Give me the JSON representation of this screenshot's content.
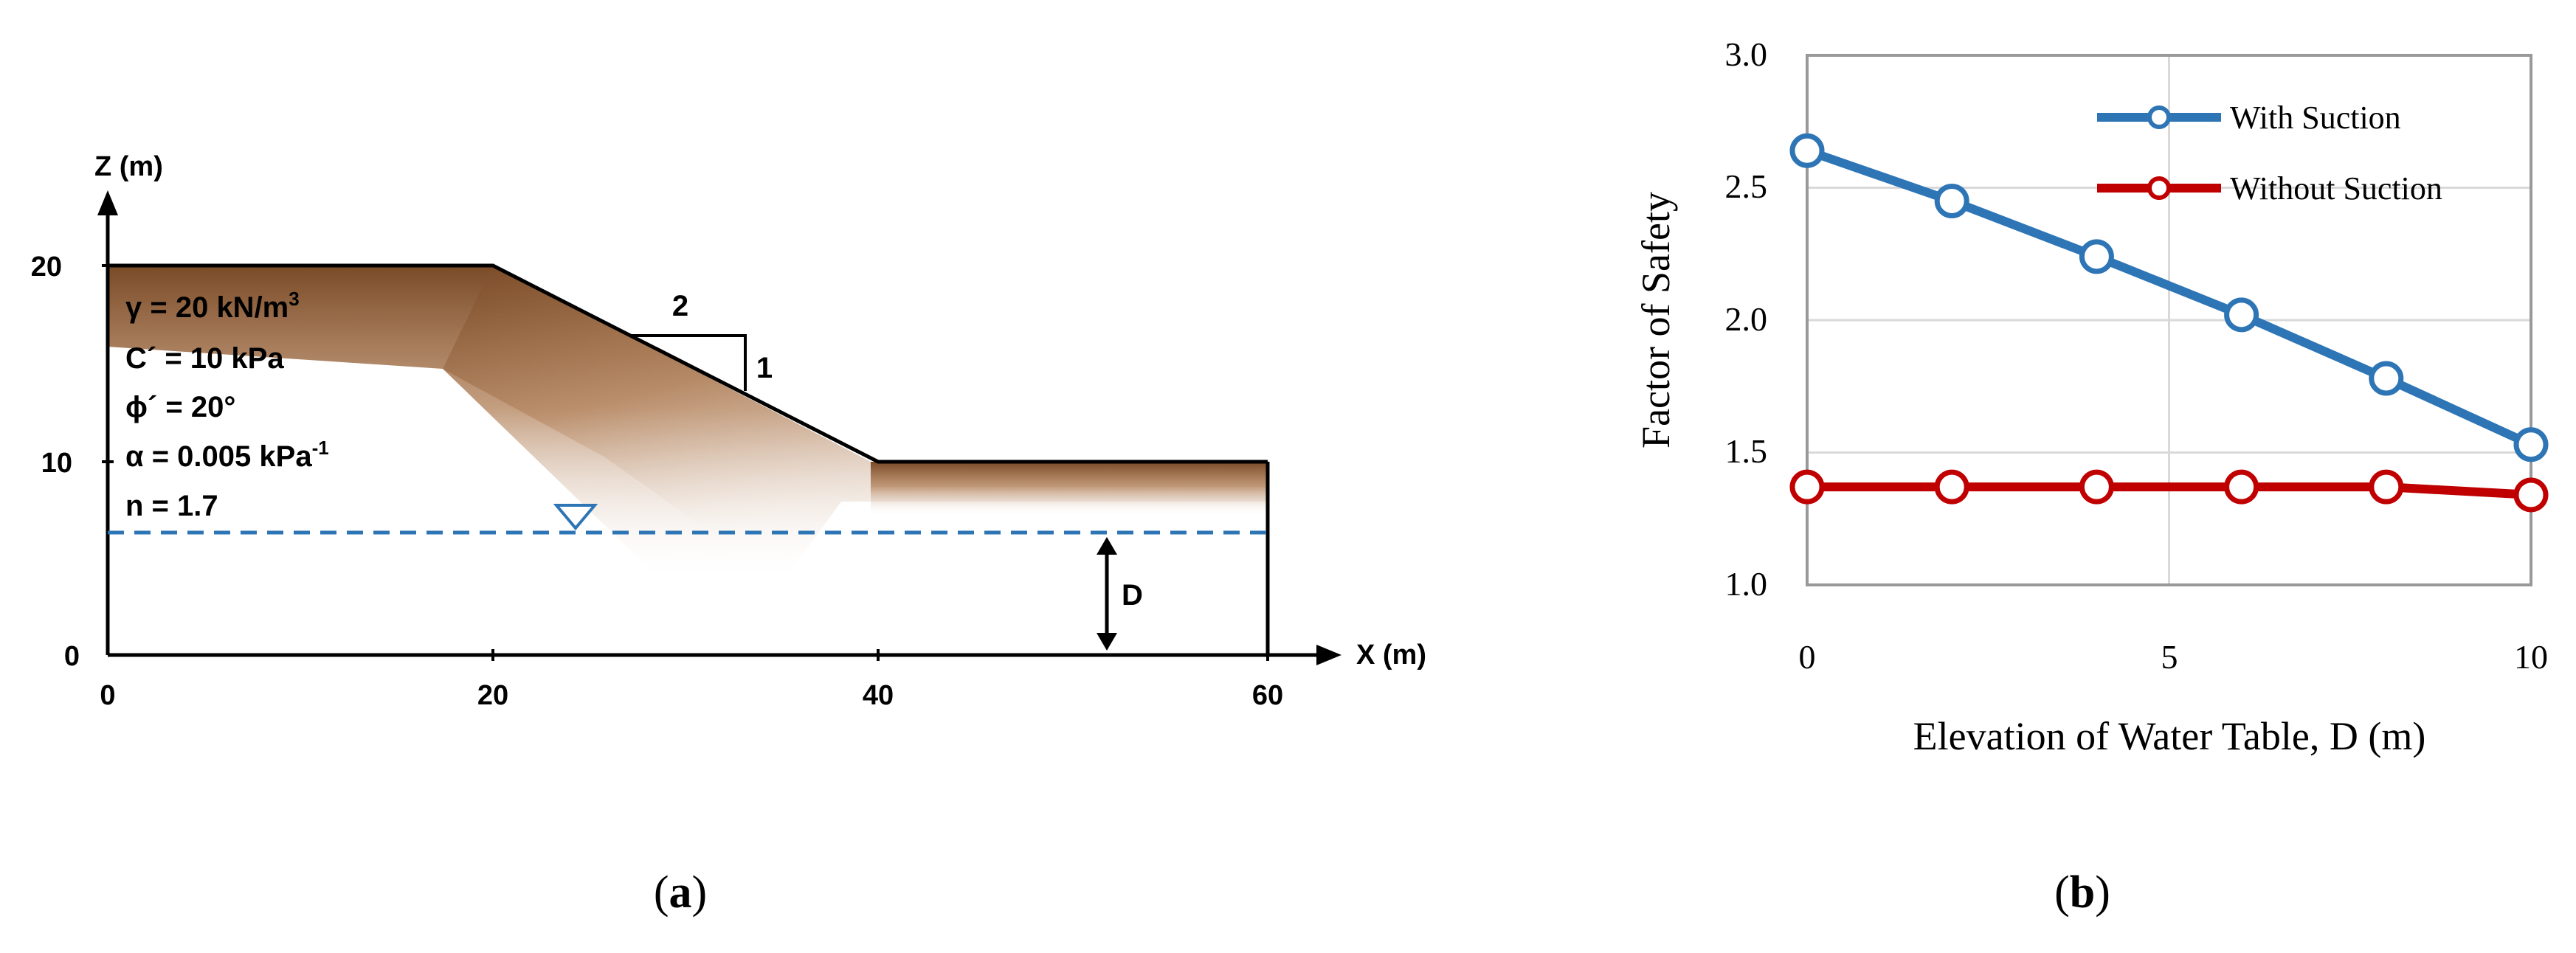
{
  "panel_a": {
    "caption": {
      "open": "(",
      "letter": "a",
      "close": ")"
    },
    "z_axis_label": "Z (m)",
    "x_axis_label": "X (m)",
    "x_ticks": [
      "0",
      "20",
      "40",
      "60"
    ],
    "z_ticks": [
      "0",
      "10",
      "20"
    ],
    "properties": {
      "gamma": {
        "text": "γ = 20 kN/m",
        "sup": "3"
      },
      "cohesion": "C´ = 10 kPa",
      "phi": "ϕ´ = 20°",
      "alpha": {
        "text": "α = 0.005 kPa",
        "sup": "-1"
      },
      "n": "n = 1.7"
    },
    "slope_ratio": {
      "horizontal": "2",
      "vertical": "1"
    },
    "water_depth_label": "D",
    "colors": {
      "soil": "#7a4a26",
      "water_line": "#2e75b6",
      "water_symbol": "#2e75b6"
    }
  },
  "panel_b": {
    "caption": {
      "open": "(",
      "letter": "b",
      "close": ")"
    },
    "x_ticks": [
      "0",
      "5",
      "10"
    ],
    "y_ticks": [
      "1.0",
      "1.5",
      "2.0",
      "2.5",
      "3.0"
    ]
  },
  "chart_data": {
    "type": "line",
    "xlabel": "Elevation of Water Table, D (m)",
    "ylabel": "Factor of Safety",
    "xlim": [
      0,
      10
    ],
    "ylim": [
      1.0,
      3.0
    ],
    "grid": true,
    "legend_position": "top-right",
    "x": [
      0,
      2,
      4,
      6,
      8,
      10
    ],
    "series": [
      {
        "name": "With Suction",
        "color": "#2e75b6",
        "values": [
          2.64,
          2.45,
          2.24,
          2.02,
          1.78,
          1.53
        ]
      },
      {
        "name": "Without Suction",
        "color": "#c00000",
        "values": [
          1.37,
          1.37,
          1.37,
          1.37,
          1.37,
          1.34
        ]
      }
    ]
  }
}
